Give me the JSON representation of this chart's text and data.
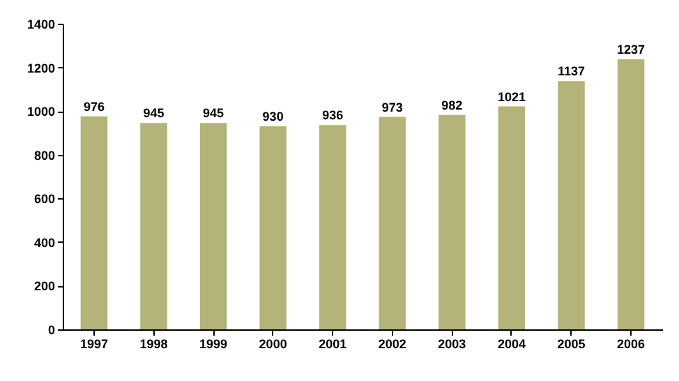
{
  "chart_data": {
    "type": "bar",
    "categories": [
      "1997",
      "1998",
      "1999",
      "2000",
      "2001",
      "2002",
      "2003",
      "2004",
      "2005",
      "2006"
    ],
    "values": [
      976,
      945,
      945,
      930,
      936,
      973,
      982,
      1021,
      1137,
      1237
    ],
    "color": "#b3b37a",
    "ylim": [
      0,
      1400
    ],
    "yticks": [
      0,
      200,
      400,
      600,
      800,
      1000,
      1200,
      1400
    ],
    "grid": false,
    "data_labels": true
  }
}
